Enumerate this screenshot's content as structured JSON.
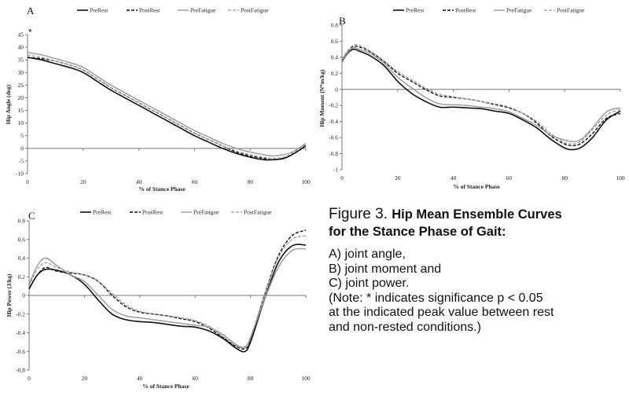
{
  "legend_labels": [
    "PreRest",
    "PostRest",
    "PreFatigue",
    "PostFatigue"
  ],
  "line_colors": {
    "PreRest": "#111111",
    "PostRest": "#111111",
    "PreFatigue": "#999999",
    "PostFatigue": "#999999"
  },
  "chart_data": [
    {
      "panel": "A",
      "type": "line",
      "xlabel": "% of Stance Phase",
      "ylabel": "Hip Angle (deg)",
      "xlim": [
        0,
        100
      ],
      "ylim": [
        -10,
        45
      ],
      "x_ticks": [
        0,
        20,
        40,
        60,
        80,
        100
      ],
      "y_ticks": [
        -10,
        -5,
        0,
        5,
        10,
        15,
        20,
        25,
        30,
        35,
        40,
        45
      ],
      "annotation": "*",
      "series": [
        {
          "name": "PreRest",
          "x": [
            0,
            5,
            10,
            15,
            20,
            25,
            30,
            35,
            40,
            45,
            50,
            55,
            60,
            65,
            70,
            75,
            80,
            85,
            88,
            92,
            95,
            98,
            100
          ],
          "values": [
            36,
            35,
            33.5,
            32,
            30,
            26.5,
            23,
            20,
            17,
            14,
            11,
            8,
            5,
            2.5,
            0,
            -2,
            -3.5,
            -4.5,
            -4.5,
            -4,
            -2.5,
            -0.5,
            1
          ]
        },
        {
          "name": "PostRest",
          "x": [
            0,
            5,
            10,
            15,
            20,
            25,
            30,
            35,
            40,
            45,
            50,
            55,
            60,
            65,
            70,
            75,
            80,
            85,
            88,
            92,
            95,
            98,
            100
          ],
          "values": [
            36,
            35.5,
            34.5,
            33,
            31,
            27.5,
            24,
            21,
            18,
            15,
            12,
            9,
            6,
            3.5,
            1,
            -1.5,
            -3,
            -4,
            -4.5,
            -4,
            -2.5,
            -0.5,
            1.5
          ]
        },
        {
          "name": "PreFatigue",
          "x": [
            0,
            5,
            10,
            15,
            20,
            25,
            30,
            35,
            40,
            45,
            50,
            55,
            60,
            65,
            70,
            75,
            80,
            85,
            88,
            92,
            95,
            98,
            100
          ],
          "values": [
            38,
            37,
            35.5,
            34,
            32,
            28.5,
            25,
            22,
            19,
            16,
            13,
            10,
            7,
            4.5,
            2,
            0,
            -1.5,
            -2.5,
            -3,
            -2.5,
            -1.5,
            0.5,
            2
          ]
        },
        {
          "name": "PostFatigue",
          "x": [
            0,
            5,
            10,
            15,
            20,
            25,
            30,
            35,
            40,
            45,
            50,
            55,
            60,
            65,
            70,
            75,
            80,
            85,
            88,
            92,
            95,
            98,
            100
          ],
          "values": [
            37,
            36,
            34.5,
            33,
            31,
            27.5,
            24,
            21,
            18,
            15,
            12,
            9,
            6,
            3.5,
            1,
            -1,
            -2.5,
            -3.5,
            -4,
            -3.5,
            -2,
            0,
            1.5
          ]
        }
      ]
    },
    {
      "panel": "B",
      "type": "line",
      "xlabel": "% of Stance Phase",
      "ylabel": "Hip Moment (N*m/kg)",
      "xlim": [
        0,
        100
      ],
      "ylim": [
        -1,
        0.8
      ],
      "x_ticks": [
        0,
        20,
        40,
        60,
        80,
        100
      ],
      "y_ticks": [
        -1,
        -0.8,
        -0.6,
        -0.4,
        -0.2,
        0,
        0.2,
        0.4,
        0.6,
        0.8
      ],
      "series": [
        {
          "name": "PreRest",
          "x": [
            0,
            2,
            4,
            6,
            10,
            15,
            20,
            25,
            30,
            35,
            40,
            45,
            50,
            55,
            60,
            65,
            70,
            75,
            80,
            83,
            86,
            90,
            95,
            100
          ],
          "values": [
            0.35,
            0.45,
            0.5,
            0.48,
            0.42,
            0.3,
            0.1,
            -0.05,
            -0.15,
            -0.22,
            -0.22,
            -0.23,
            -0.24,
            -0.27,
            -0.3,
            -0.38,
            -0.48,
            -0.62,
            -0.73,
            -0.75,
            -0.72,
            -0.6,
            -0.38,
            -0.27
          ]
        },
        {
          "name": "PostRest",
          "x": [
            0,
            2,
            4,
            6,
            10,
            15,
            20,
            25,
            30,
            35,
            40,
            45,
            50,
            55,
            60,
            65,
            70,
            75,
            80,
            83,
            86,
            90,
            95,
            100
          ],
          "values": [
            0.37,
            0.47,
            0.53,
            0.53,
            0.47,
            0.35,
            0.2,
            0.1,
            0.0,
            -0.08,
            -0.1,
            -0.12,
            -0.15,
            -0.19,
            -0.23,
            -0.3,
            -0.42,
            -0.58,
            -0.68,
            -0.7,
            -0.67,
            -0.55,
            -0.36,
            -0.3
          ]
        },
        {
          "name": "PreFatigue",
          "x": [
            0,
            2,
            4,
            6,
            10,
            15,
            20,
            25,
            30,
            35,
            40,
            45,
            50,
            55,
            60,
            65,
            70,
            75,
            80,
            83,
            86,
            90,
            95,
            100
          ],
          "values": [
            0.36,
            0.46,
            0.52,
            0.5,
            0.45,
            0.33,
            0.15,
            0.02,
            -0.1,
            -0.18,
            -0.19,
            -0.2,
            -0.22,
            -0.24,
            -0.28,
            -0.36,
            -0.45,
            -0.57,
            -0.63,
            -0.65,
            -0.62,
            -0.48,
            -0.28,
            -0.23
          ]
        },
        {
          "name": "PostFatigue",
          "x": [
            0,
            2,
            4,
            6,
            10,
            15,
            20,
            25,
            30,
            35,
            40,
            45,
            50,
            55,
            60,
            65,
            70,
            75,
            80,
            83,
            86,
            90,
            95,
            100
          ],
          "values": [
            0.38,
            0.48,
            0.55,
            0.55,
            0.48,
            0.36,
            0.22,
            0.12,
            0.02,
            -0.06,
            -0.09,
            -0.12,
            -0.15,
            -0.18,
            -0.22,
            -0.3,
            -0.4,
            -0.55,
            -0.66,
            -0.68,
            -0.64,
            -0.5,
            -0.32,
            -0.25
          ]
        }
      ]
    },
    {
      "panel": "C",
      "type": "line",
      "xlabel": "% of Stance Phase",
      "ylabel": "Hip Power (J/kg)",
      "xlim": [
        0,
        100
      ],
      "ylim": [
        -0.8,
        0.8
      ],
      "x_ticks": [
        0,
        20,
        40,
        60,
        80,
        100
      ],
      "y_ticks": [
        -0.8,
        -0.6,
        -0.4,
        -0.2,
        0,
        0.2,
        0.4,
        0.6,
        0.8
      ],
      "series": [
        {
          "name": "PreRest",
          "x": [
            0,
            3,
            6,
            10,
            15,
            20,
            25,
            30,
            35,
            40,
            45,
            50,
            55,
            60,
            65,
            70,
            75,
            78,
            80,
            85,
            90,
            95,
            100
          ],
          "values": [
            0.07,
            0.22,
            0.28,
            0.27,
            0.22,
            0.12,
            -0.05,
            -0.2,
            -0.26,
            -0.28,
            -0.29,
            -0.31,
            -0.33,
            -0.34,
            -0.38,
            -0.46,
            -0.57,
            -0.6,
            -0.5,
            -0.05,
            0.35,
            0.53,
            0.54
          ]
        },
        {
          "name": "PostRest",
          "x": [
            0,
            3,
            6,
            10,
            15,
            20,
            25,
            30,
            35,
            40,
            45,
            50,
            55,
            60,
            65,
            70,
            75,
            78,
            80,
            85,
            90,
            95,
            100
          ],
          "values": [
            0.07,
            0.22,
            0.3,
            0.26,
            0.24,
            0.22,
            0.15,
            0.0,
            -0.12,
            -0.18,
            -0.2,
            -0.22,
            -0.25,
            -0.28,
            -0.35,
            -0.45,
            -0.55,
            -0.57,
            -0.48,
            0.0,
            0.42,
            0.64,
            0.7
          ]
        },
        {
          "name": "PreFatigue",
          "x": [
            0,
            3,
            6,
            10,
            15,
            20,
            25,
            30,
            35,
            40,
            45,
            50,
            55,
            60,
            65,
            70,
            75,
            78,
            80,
            85,
            90,
            95,
            100
          ],
          "values": [
            0.12,
            0.32,
            0.4,
            0.32,
            0.22,
            0.15,
            0.0,
            -0.15,
            -0.22,
            -0.24,
            -0.26,
            -0.28,
            -0.3,
            -0.32,
            -0.34,
            -0.42,
            -0.53,
            -0.55,
            -0.45,
            -0.05,
            0.3,
            0.48,
            0.5
          ]
        },
        {
          "name": "PostFatigue",
          "x": [
            0,
            3,
            6,
            10,
            15,
            20,
            25,
            30,
            35,
            40,
            45,
            50,
            55,
            60,
            65,
            70,
            75,
            78,
            80,
            85,
            90,
            95,
            100
          ],
          "values": [
            0.1,
            0.28,
            0.35,
            0.3,
            0.25,
            0.22,
            0.15,
            0.02,
            -0.1,
            -0.17,
            -0.2,
            -0.22,
            -0.24,
            -0.27,
            -0.33,
            -0.44,
            -0.54,
            -0.56,
            -0.46,
            0.0,
            0.4,
            0.6,
            0.64
          ]
        }
      ]
    }
  ],
  "caption": {
    "title_prefix": "Figure 3.",
    "title_bold_1": "Hip Mean Ensemble Curves",
    "title_bold_2": "for the Stance Phase of Gait:",
    "lines": [
      "A) joint angle,",
      "B) joint moment and",
      "C) joint power.",
      "(Note: * indicates significance p < 0.05",
      "at the indicated peak value between rest",
      "and non-rested conditions.)"
    ]
  }
}
